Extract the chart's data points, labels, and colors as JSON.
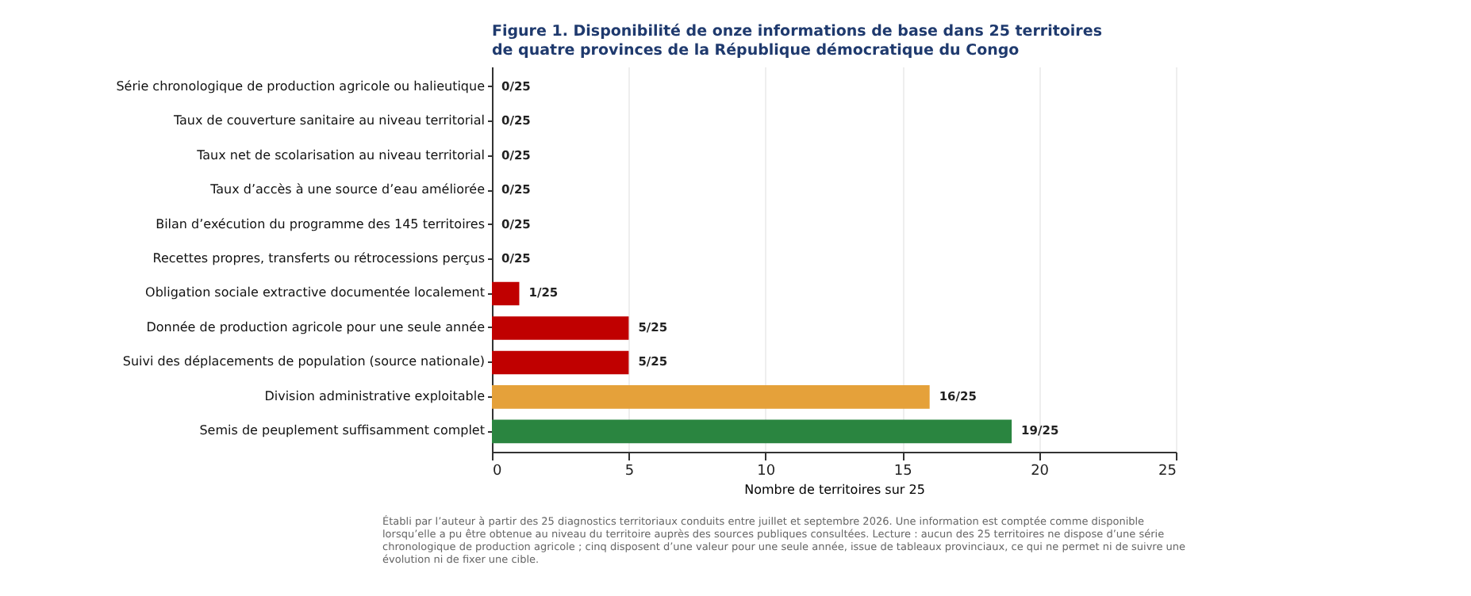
{
  "chart_data": {
    "type": "bar",
    "orientation": "horizontal",
    "title": "Figure 1. Disponibilité de onze informations de base dans 25 territoires\nde quatre provinces de la République démocratique du Congo",
    "xlabel": "Nombre de territoires sur 25",
    "categories": [
      "Série chronologique de production agricole ou halieutique",
      "Taux de couverture sanitaire au niveau territorial",
      "Taux net de scolarisation au niveau territorial",
      "Taux d’accès à une source d’eau améliorée",
      "Bilan d’exécution du programme des 145 territoires",
      "Recettes propres, transferts ou rétrocessions perçus",
      "Obligation sociale extractive documentée localement",
      "Donnée de production agricole pour une seule année",
      "Suivi des déplacements de population (source nationale)",
      "Division administrative exploitable",
      "Semis de peuplement suffisamment complet"
    ],
    "values": [
      0,
      0,
      0,
      0,
      0,
      0,
      1,
      5,
      5,
      16,
      19
    ],
    "value_labels": [
      "0/25",
      "0/25",
      "0/25",
      "0/25",
      "0/25",
      "0/25",
      "1/25",
      "5/25",
      "5/25",
      "16/25",
      "19/25"
    ],
    "colors": [
      "#c00000",
      "#c00000",
      "#c00000",
      "#c00000",
      "#c00000",
      "#c00000",
      "#c00000",
      "#c00000",
      "#c00000",
      "#e5a13a",
      "#2a8540"
    ],
    "xlim": [
      0,
      25
    ],
    "xticks": [
      0,
      5,
      10,
      15,
      20,
      25
    ],
    "grid": "x",
    "annotations": [
      "Établi par l’auteur à partir des 25 diagnostics territoriaux conduits entre juillet et septembre 2026. Une information est comptée comme disponible lorsqu’elle a pu être obtenue au niveau du territoire auprès des sources publiques consultées. Lecture : aucun des 25 territoires ne dispose d’une série chronologique de production agricole ; cinq disposent d’une valeur pour une seule année, issue de tableaux provinciaux, ce qui ne permet ni de suivre une évolution ni de fixer une cible."
    ]
  }
}
